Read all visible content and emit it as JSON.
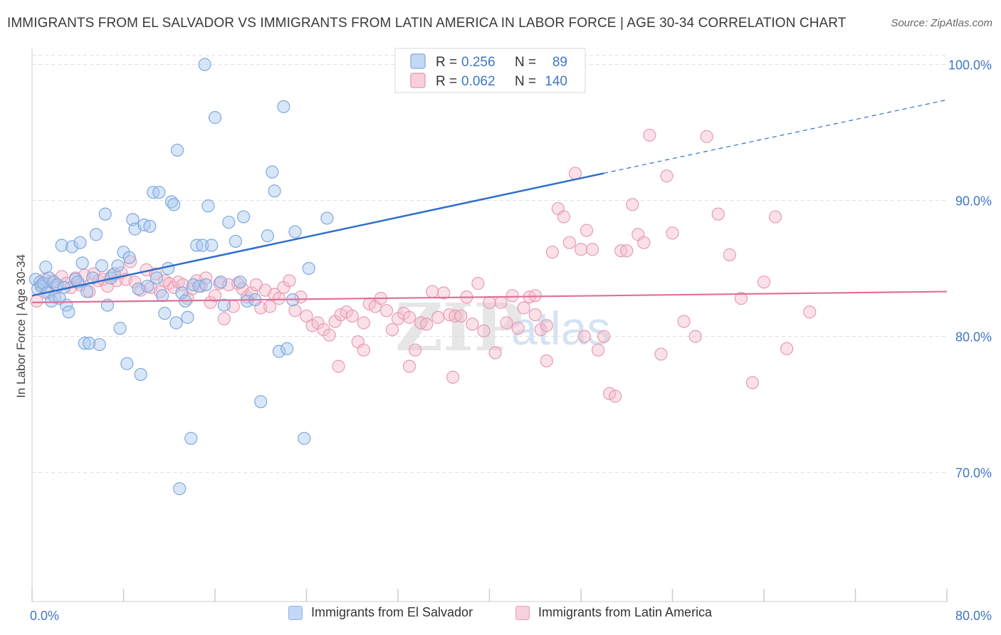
{
  "title": "IMMIGRANTS FROM EL SALVADOR VS IMMIGRANTS FROM LATIN AMERICA IN LABOR FORCE | AGE 30-34 CORRELATION CHART",
  "source": "Source: ZipAtlas.com",
  "watermark": {
    "zip": "ZIP",
    "atlas": "atlas"
  },
  "colors": {
    "blue_fill": "#a9c8ef",
    "blue_stroke": "#7fa9df",
    "blue_line": "#2f6fca",
    "pink_fill": "#f3bccd",
    "pink_stroke": "#e79bb3",
    "pink_line": "#e07097",
    "axis_label": "#3f76c4",
    "grid": "#dddddd"
  },
  "chart_data": {
    "type": "scatter",
    "title": "IMMIGRANTS FROM EL SALVADOR VS IMMIGRANTS FROM LATIN AMERICA IN LABOR FORCE | AGE 30-34 CORRELATION CHART",
    "xlabel": "",
    "ylabel": "In Labor Force | Age 30-34",
    "xlim": [
      0,
      80
    ],
    "ylim": [
      60.5,
      101.5
    ],
    "x_tick_labels": [
      "0.0%",
      "80.0%"
    ],
    "y_ticks": [
      70,
      80,
      90,
      100
    ],
    "y_tick_labels": [
      "70.0%",
      "80.0%",
      "90.0%",
      "100.0%"
    ],
    "grid": true,
    "legend_position": "top-center",
    "legend": [
      {
        "r_label": "R =",
        "r": "0.256",
        "n_label": "N =",
        "n": "89"
      },
      {
        "r_label": "R =",
        "r": "0.062",
        "n_label": "N =",
        "n": "140"
      }
    ],
    "series": [
      {
        "name": "Immigrants from El Salvador",
        "color": "#a9c8ef",
        "trend": {
          "x0": 0,
          "y0": 83.0,
          "x1": 50,
          "y1": 92.0,
          "dashed_to_x": 80,
          "dashed_to_y": 97.4
        },
        "points": [
          [
            0.3,
            84.2
          ],
          [
            0.5,
            83.5
          ],
          [
            0.7,
            84.0
          ],
          [
            0.8,
            83.7
          ],
          [
            1.0,
            83.9
          ],
          [
            1.2,
            85.1
          ],
          [
            1.3,
            83.2
          ],
          [
            1.5,
            84.3
          ],
          [
            1.7,
            82.6
          ],
          [
            1.9,
            84.0
          ],
          [
            2.0,
            82.9
          ],
          [
            2.2,
            83.8
          ],
          [
            2.4,
            82.8
          ],
          [
            2.6,
            86.7
          ],
          [
            2.8,
            83.6
          ],
          [
            3.0,
            82.3
          ],
          [
            3.2,
            81.8
          ],
          [
            3.5,
            86.6
          ],
          [
            3.8,
            84.2
          ],
          [
            4.0,
            84.0
          ],
          [
            4.2,
            86.9
          ],
          [
            4.4,
            85.4
          ],
          [
            4.6,
            79.5
          ],
          [
            4.8,
            83.3
          ],
          [
            5.0,
            79.5
          ],
          [
            5.3,
            84.3
          ],
          [
            5.6,
            87.5
          ],
          [
            5.9,
            79.4
          ],
          [
            6.1,
            85.2
          ],
          [
            6.4,
            89.0
          ],
          [
            6.6,
            82.3
          ],
          [
            6.9,
            84.3
          ],
          [
            7.2,
            84.6
          ],
          [
            7.5,
            85.2
          ],
          [
            7.7,
            80.6
          ],
          [
            8.0,
            86.2
          ],
          [
            8.3,
            78.0
          ],
          [
            8.5,
            85.8
          ],
          [
            8.8,
            88.6
          ],
          [
            9.0,
            87.9
          ],
          [
            9.3,
            83.5
          ],
          [
            9.5,
            77.2
          ],
          [
            9.8,
            88.2
          ],
          [
            10.1,
            83.7
          ],
          [
            10.3,
            88.1
          ],
          [
            10.6,
            90.6
          ],
          [
            10.9,
            84.3
          ],
          [
            11.1,
            90.6
          ],
          [
            11.4,
            83.0
          ],
          [
            11.6,
            81.7
          ],
          [
            11.9,
            85.0
          ],
          [
            12.2,
            89.9
          ],
          [
            12.4,
            89.7
          ],
          [
            12.7,
            93.7
          ],
          [
            12.9,
            68.8
          ],
          [
            13.1,
            83.2
          ],
          [
            13.4,
            82.6
          ],
          [
            13.6,
            81.4
          ],
          [
            13.9,
            72.5
          ],
          [
            14.1,
            83.8
          ],
          [
            14.4,
            86.7
          ],
          [
            14.6,
            83.7
          ],
          [
            14.9,
            86.7
          ],
          [
            15.2,
            83.8
          ],
          [
            15.4,
            89.6
          ],
          [
            15.7,
            86.7
          ],
          [
            16.0,
            96.1
          ],
          [
            16.5,
            84.0
          ],
          [
            16.8,
            82.3
          ],
          [
            17.2,
            88.4
          ],
          [
            17.8,
            87.0
          ],
          [
            18.2,
            84.0
          ],
          [
            18.5,
            88.8
          ],
          [
            18.8,
            82.6
          ],
          [
            19.5,
            82.7
          ],
          [
            20.0,
            75.2
          ],
          [
            20.6,
            87.4
          ],
          [
            21.0,
            92.1
          ],
          [
            21.2,
            90.7
          ],
          [
            21.6,
            78.9
          ],
          [
            22.0,
            96.9
          ],
          [
            22.3,
            79.1
          ],
          [
            22.8,
            82.7
          ],
          [
            23.0,
            87.7
          ],
          [
            23.8,
            72.5
          ],
          [
            24.2,
            85.0
          ],
          [
            25.8,
            88.7
          ],
          [
            15.1,
            100.0
          ],
          [
            12.6,
            81.0
          ]
        ]
      },
      {
        "name": "Immigrants from Latin America",
        "color": "#f3bccd",
        "trend": {
          "x0": 0,
          "y0": 82.5,
          "x1": 80,
          "y1": 83.3
        },
        "points": [
          [
            0.4,
            82.6
          ],
          [
            0.8,
            83.8
          ],
          [
            1.1,
            84.2
          ],
          [
            1.4,
            83.3
          ],
          [
            1.8,
            84.1
          ],
          [
            2.2,
            83.6
          ],
          [
            2.6,
            84.4
          ],
          [
            3.0,
            83.9
          ],
          [
            3.4,
            83.6
          ],
          [
            3.8,
            84.3
          ],
          [
            4.2,
            83.8
          ],
          [
            4.6,
            84.5
          ],
          [
            5.0,
            83.3
          ],
          [
            5.4,
            84.6
          ],
          [
            5.8,
            84.1
          ],
          [
            6.2,
            84.2
          ],
          [
            6.6,
            83.7
          ],
          [
            7.0,
            84.5
          ],
          [
            7.4,
            84.1
          ],
          [
            7.8,
            84.7
          ],
          [
            8.2,
            84.2
          ],
          [
            8.6,
            85.5
          ],
          [
            9.0,
            84.0
          ],
          [
            9.5,
            83.4
          ],
          [
            10.0,
            84.9
          ],
          [
            10.4,
            83.6
          ],
          [
            10.8,
            84.6
          ],
          [
            11.2,
            83.3
          ],
          [
            11.6,
            84.1
          ],
          [
            12.0,
            83.9
          ],
          [
            12.4,
            83.6
          ],
          [
            12.8,
            84.0
          ],
          [
            13.2,
            83.8
          ],
          [
            13.6,
            82.8
          ],
          [
            14.0,
            83.5
          ],
          [
            14.4,
            84.1
          ],
          [
            14.8,
            83.7
          ],
          [
            15.2,
            84.3
          ],
          [
            15.6,
            82.5
          ],
          [
            16.0,
            83.0
          ],
          [
            16.4,
            83.9
          ],
          [
            16.8,
            81.3
          ],
          [
            17.2,
            83.8
          ],
          [
            17.6,
            82.2
          ],
          [
            18.0,
            83.9
          ],
          [
            18.4,
            83.5
          ],
          [
            18.8,
            82.9
          ],
          [
            19.2,
            83.2
          ],
          [
            19.6,
            83.8
          ],
          [
            20.0,
            82.1
          ],
          [
            20.4,
            83.4
          ],
          [
            20.8,
            82.2
          ],
          [
            21.2,
            83.1
          ],
          [
            21.6,
            82.8
          ],
          [
            22.0,
            83.6
          ],
          [
            22.5,
            84.1
          ],
          [
            23.0,
            81.9
          ],
          [
            23.5,
            82.9
          ],
          [
            24.0,
            81.5
          ],
          [
            24.5,
            80.8
          ],
          [
            25.0,
            81.0
          ],
          [
            25.5,
            80.5
          ],
          [
            26.0,
            80.1
          ],
          [
            26.5,
            81.1
          ],
          [
            27.0,
            81.6
          ],
          [
            27.5,
            81.8
          ],
          [
            28.0,
            81.5
          ],
          [
            28.5,
            79.6
          ],
          [
            29.0,
            81.0
          ],
          [
            29.5,
            82.4
          ],
          [
            30.0,
            82.2
          ],
          [
            30.5,
            82.8
          ],
          [
            31.0,
            81.9
          ],
          [
            31.5,
            80.5
          ],
          [
            32.0,
            81.3
          ],
          [
            32.5,
            81.7
          ],
          [
            33.0,
            81.4
          ],
          [
            33.5,
            79.0
          ],
          [
            34.0,
            81.0
          ],
          [
            34.5,
            80.9
          ],
          [
            35.0,
            83.3
          ],
          [
            35.5,
            81.4
          ],
          [
            36.0,
            83.2
          ],
          [
            36.5,
            81.6
          ],
          [
            37.0,
            81.5
          ],
          [
            37.5,
            81.5
          ],
          [
            38.0,
            82.9
          ],
          [
            38.5,
            80.9
          ],
          [
            39.0,
            83.9
          ],
          [
            39.5,
            80.4
          ],
          [
            40.0,
            82.5
          ],
          [
            40.5,
            78.8
          ],
          [
            41.0,
            82.5
          ],
          [
            41.5,
            81.0
          ],
          [
            42.0,
            83.0
          ],
          [
            42.5,
            80.6
          ],
          [
            43.0,
            82.1
          ],
          [
            43.5,
            82.9
          ],
          [
            44.0,
            83.0
          ],
          [
            44.5,
            80.5
          ],
          [
            45.0,
            78.2
          ],
          [
            45.5,
            86.2
          ],
          [
            46.0,
            89.4
          ],
          [
            46.5,
            88.8
          ],
          [
            47.0,
            86.9
          ],
          [
            47.5,
            92.0
          ],
          [
            48.0,
            86.4
          ],
          [
            48.5,
            87.8
          ],
          [
            49.0,
            86.4
          ],
          [
            49.5,
            79.0
          ],
          [
            50.0,
            80.0
          ],
          [
            50.5,
            75.8
          ],
          [
            51.0,
            75.6
          ],
          [
            51.5,
            86.3
          ],
          [
            52.0,
            86.3
          ],
          [
            52.5,
            89.7
          ],
          [
            53.0,
            87.5
          ],
          [
            53.5,
            86.9
          ],
          [
            54.0,
            94.8
          ],
          [
            55.0,
            78.7
          ],
          [
            56.0,
            87.6
          ],
          [
            57.0,
            81.1
          ],
          [
            58.0,
            80.0
          ],
          [
            59.0,
            94.7
          ],
          [
            60.0,
            89.0
          ],
          [
            61.0,
            86.0
          ],
          [
            62.0,
            82.8
          ],
          [
            63.0,
            76.6
          ],
          [
            64.0,
            84.0
          ],
          [
            65.0,
            88.8
          ],
          [
            66.0,
            79.1
          ],
          [
            68.0,
            81.8
          ],
          [
            55.5,
            91.8
          ],
          [
            44.0,
            81.6
          ],
          [
            36.8,
            77.0
          ],
          [
            33.0,
            77.8
          ],
          [
            29.0,
            79.0
          ],
          [
            26.8,
            77.8
          ],
          [
            48.3,
            80.0
          ],
          [
            45.0,
            80.8
          ]
        ]
      }
    ]
  },
  "legend_bottom": [
    {
      "label": "Immigrants from El Salvador"
    },
    {
      "label": "Immigrants from Latin America"
    }
  ]
}
